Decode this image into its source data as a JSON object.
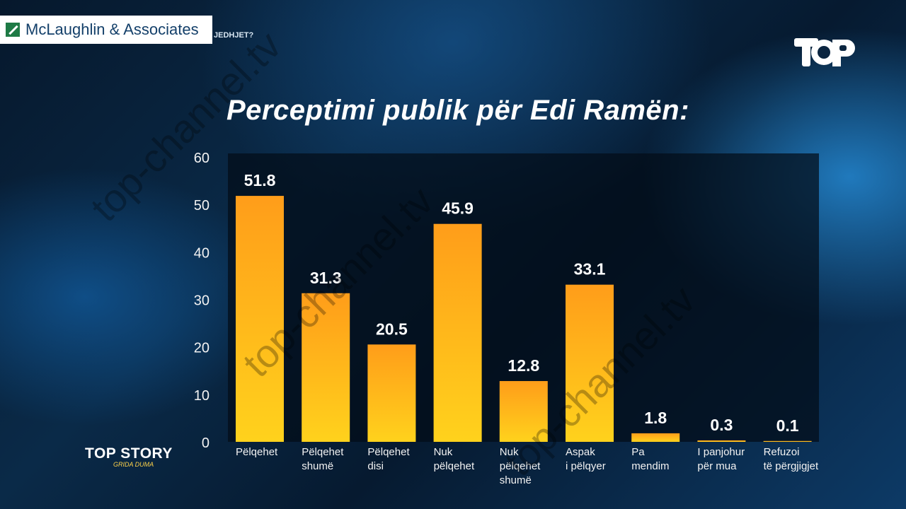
{
  "header": {
    "sponsor": "McLaughlin & Associates",
    "fragment": "JEDHJET?"
  },
  "brand": {
    "show": "TOP STORY",
    "host": "GRIDA DUMA"
  },
  "watermark": "top-channel.tv",
  "colors": {
    "bar_top": "#ff9d1a",
    "bar_bottom": "#ffd21c",
    "axis_text": "#f2f2f2",
    "label_text": "#ffffff"
  },
  "chart_data": {
    "type": "bar",
    "title": "Perceptimi publik për Edi Ramën:",
    "categories": [
      [
        "Pëlqehet"
      ],
      [
        "Pëlqehet",
        "shumë"
      ],
      [
        "Pëlqehet",
        "disi"
      ],
      [
        "Nuk",
        "pëlqehet"
      ],
      [
        "Nuk",
        "pëlqehet",
        "shumë"
      ],
      [
        "Aspak",
        "i pëlqyer"
      ],
      [
        "Pa",
        "mendim"
      ],
      [
        "I panjohur",
        "për mua"
      ],
      [
        "Refuzoi",
        "të përgjigjet"
      ]
    ],
    "values": [
      51.8,
      31.3,
      20.5,
      45.9,
      12.8,
      33.1,
      1.8,
      0.3,
      0.1
    ],
    "value_labels": [
      "51.8",
      "31.3",
      "20.5",
      "45.9",
      "12.8",
      "33.1",
      "1.8",
      "0.3",
      "0.1"
    ],
    "yticks": [
      "0",
      "10",
      "20",
      "30",
      "40",
      "50",
      "60"
    ],
    "ylim": [
      0,
      60
    ],
    "grid": false,
    "legend": false
  }
}
